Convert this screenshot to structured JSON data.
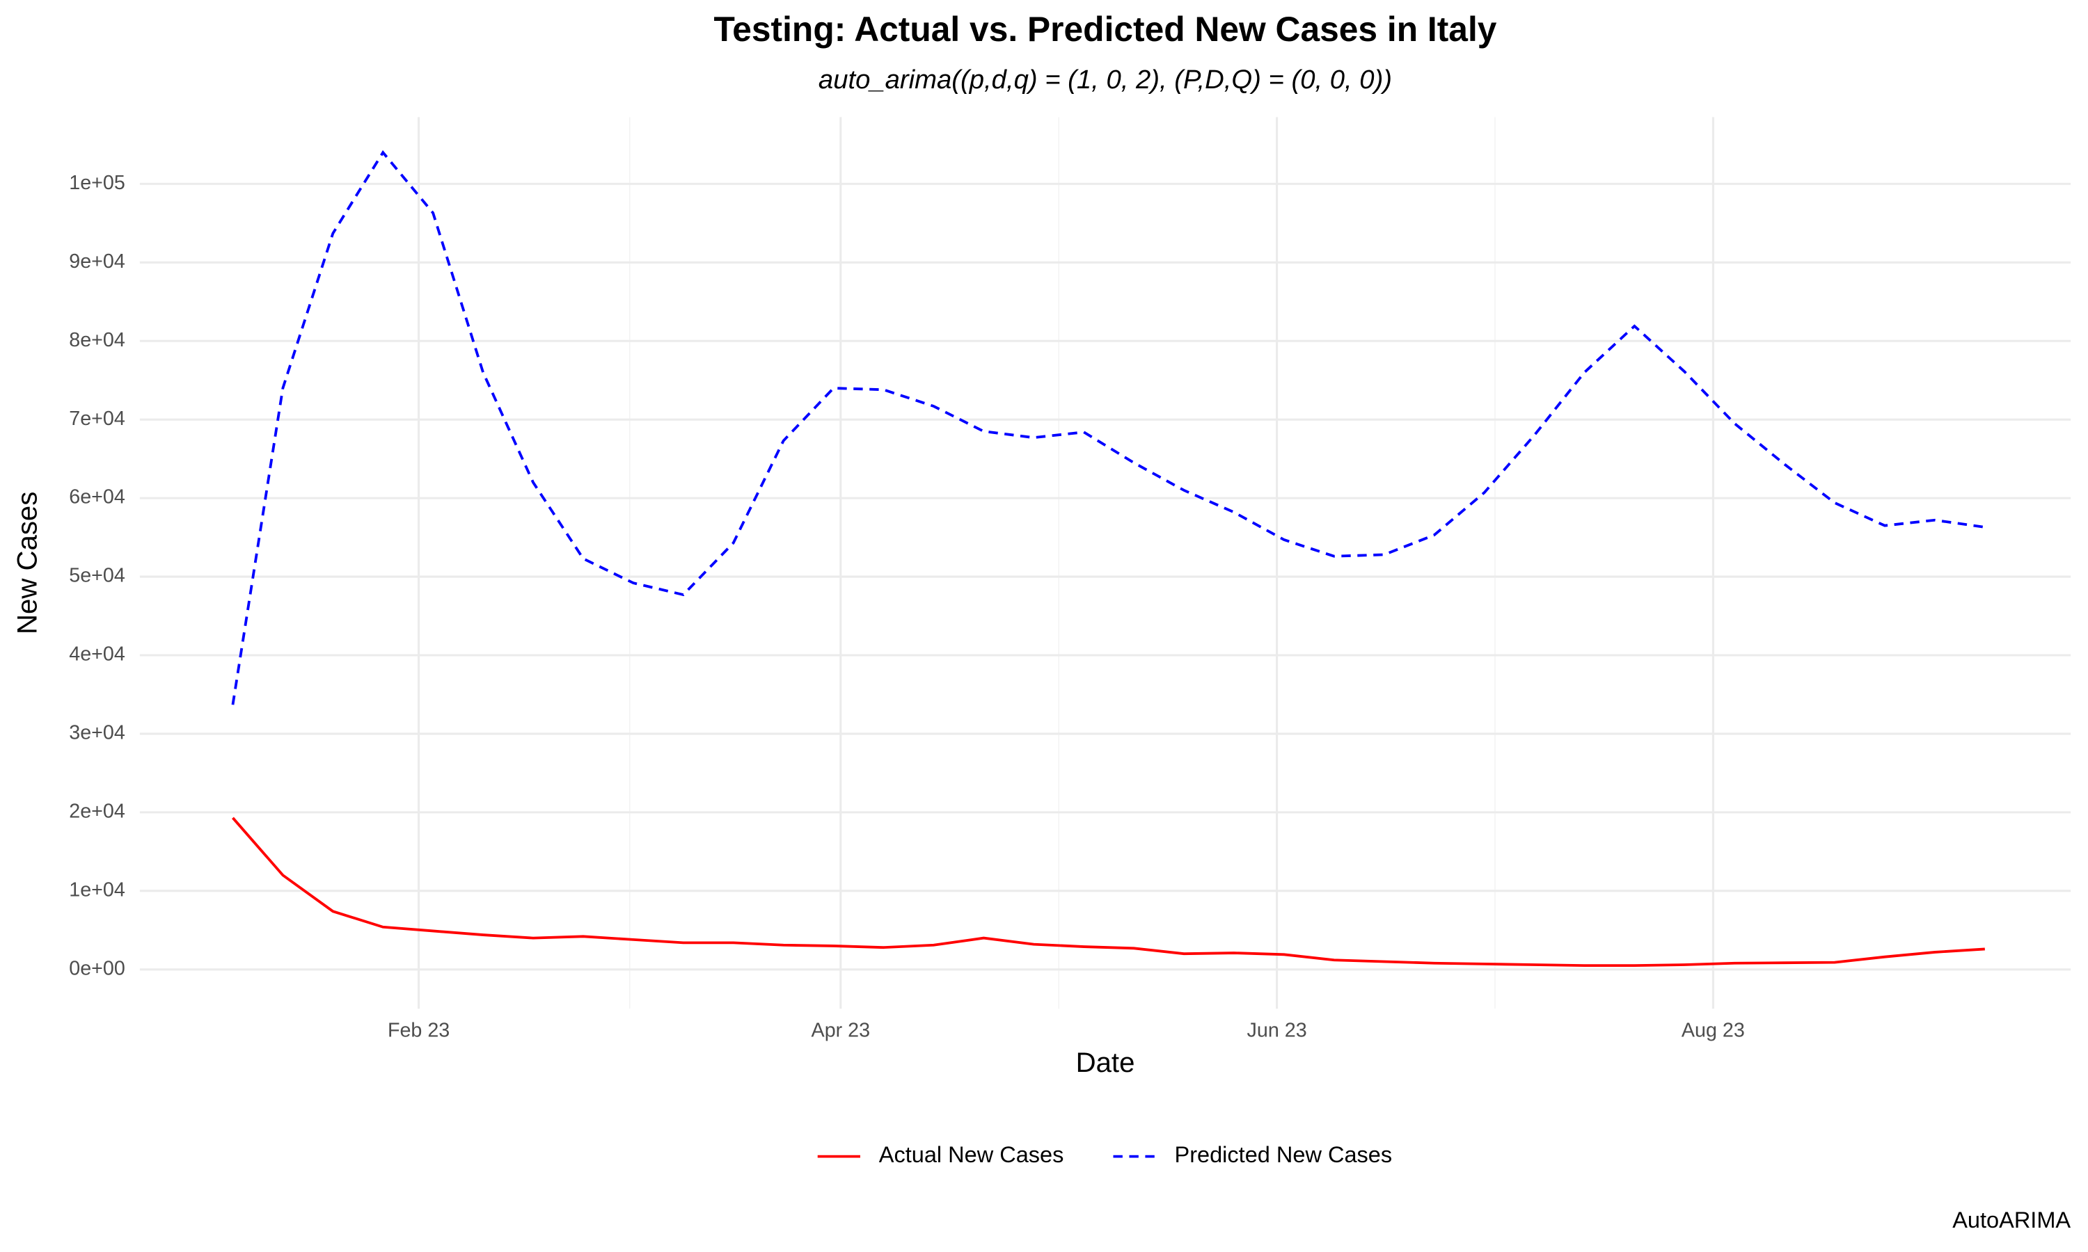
{
  "chart_data": {
    "type": "line",
    "title": "Testing: Actual vs. Predicted New Cases in Italy",
    "subtitle": "auto_arima((p,d,q) = (1, 0, 2), (P,D,Q) = (0, 0, 0))",
    "xlabel": "Date",
    "ylabel": "New Cases",
    "caption": "AutoARIMA",
    "x": [
      "2023-01-06",
      "2023-01-13",
      "2023-01-20",
      "2023-01-27",
      "2023-02-03",
      "2023-02-10",
      "2023-02-17",
      "2023-02-24",
      "2023-03-03",
      "2023-03-10",
      "2023-03-17",
      "2023-03-24",
      "2023-03-31",
      "2023-04-07",
      "2023-04-14",
      "2023-04-21",
      "2023-04-28",
      "2023-05-05",
      "2023-05-12",
      "2023-05-19",
      "2023-05-26",
      "2023-06-02",
      "2023-06-09",
      "2023-06-16",
      "2023-06-23",
      "2023-06-30",
      "2023-07-07",
      "2023-07-14",
      "2023-07-21",
      "2023-07-28",
      "2023-08-04",
      "2023-08-11",
      "2023-08-18",
      "2023-08-25",
      "2023-09-01",
      "2023-09-08"
    ],
    "series": [
      {
        "name": "Actual New Cases",
        "color": "#ff0000",
        "dashed": false,
        "values": [
          19300,
          12000,
          7400,
          5400,
          4900,
          4400,
          4000,
          4200,
          3800,
          3400,
          3400,
          3100,
          3000,
          2800,
          3100,
          4000,
          3200,
          2900,
          2700,
          2000,
          2100,
          1900,
          1200,
          1000,
          800,
          700,
          600,
          500,
          500,
          600,
          800,
          850,
          900,
          1600,
          2200,
          2600
        ]
      },
      {
        "name": "Predicted New Cases",
        "color": "#0000ff",
        "dashed": true,
        "values": [
          33700,
          74000,
          93700,
          104000,
          96300,
          76000,
          62000,
          52300,
          49200,
          47700,
          54300,
          67300,
          74000,
          73800,
          71700,
          68500,
          67700,
          68400,
          64500,
          61000,
          58200,
          54700,
          52600,
          52800,
          55300,
          60700,
          68000,
          76000,
          81900,
          76100,
          69500,
          64300,
          59400,
          56500,
          57200,
          56300
        ]
      }
    ],
    "xlim": [
      "2022-12-24",
      "2023-09-20"
    ],
    "xticks": [
      {
        "value": "2023-02-01",
        "label": "Feb 23"
      },
      {
        "value": "2023-04-01",
        "label": "Apr 23"
      },
      {
        "value": "2023-06-01",
        "label": "Jun 23"
      },
      {
        "value": "2023-08-01",
        "label": "Aug 23"
      }
    ],
    "ylim": [
      -5000,
      108500
    ],
    "yticks": [
      {
        "value": 0,
        "label": "0e+00"
      },
      {
        "value": 10000,
        "label": "1e+04"
      },
      {
        "value": 20000,
        "label": "2e+04"
      },
      {
        "value": 30000,
        "label": "3e+04"
      },
      {
        "value": 40000,
        "label": "4e+04"
      },
      {
        "value": 50000,
        "label": "5e+04"
      },
      {
        "value": 60000,
        "label": "6e+04"
      },
      {
        "value": 70000,
        "label": "7e+04"
      },
      {
        "value": 80000,
        "label": "8e+04"
      },
      {
        "value": 90000,
        "label": "9e+04"
      },
      {
        "value": 100000,
        "label": "1e+05"
      }
    ],
    "grid": true,
    "legend": "bottom"
  }
}
